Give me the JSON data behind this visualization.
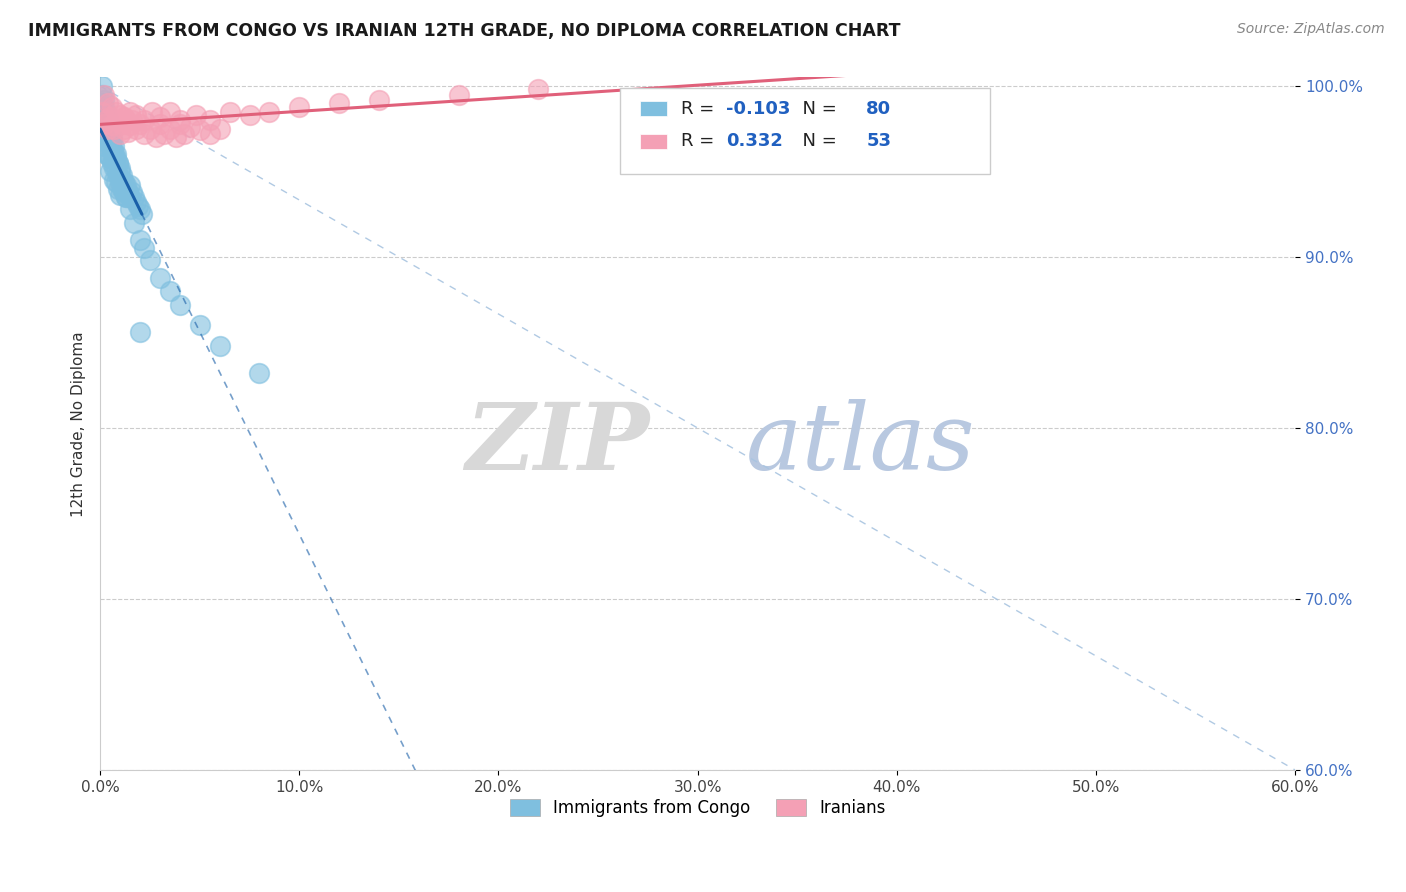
{
  "title": "IMMIGRANTS FROM CONGO VS IRANIAN 12TH GRADE, NO DIPLOMA CORRELATION CHART",
  "source": "Source: ZipAtlas.com",
  "xlabel_legend1": "Immigrants from Congo",
  "xlabel_legend2": "Iranians",
  "ylabel": "12th Grade, No Diploma",
  "r_congo": -0.103,
  "n_congo": 80,
  "r_iranian": 0.332,
  "n_iranian": 53,
  "xlim": [
    0.0,
    0.6
  ],
  "ylim": [
    0.6,
    1.005
  ],
  "xticks": [
    0.0,
    0.1,
    0.2,
    0.3,
    0.4,
    0.5,
    0.6
  ],
  "yticks": [
    0.6,
    0.7,
    0.8,
    0.9,
    1.0
  ],
  "xtick_labels": [
    "0.0%",
    "10.0%",
    "20.0%",
    "30.0%",
    "40.0%",
    "50.0%",
    "60.0%"
  ],
  "ytick_labels": [
    "60.0%",
    "70.0%",
    "80.0%",
    "90.0%",
    "100.0%"
  ],
  "color_congo": "#7fbfdf",
  "color_iranian": "#f4a0b5",
  "trendline_congo": "#1a5fa8",
  "trendline_iranian": "#e0607a",
  "background": "#ffffff",
  "congo_x": [
    0.001,
    0.001,
    0.001,
    0.001,
    0.002,
    0.002,
    0.002,
    0.002,
    0.003,
    0.003,
    0.003,
    0.003,
    0.004,
    0.004,
    0.004,
    0.005,
    0.005,
    0.005,
    0.005,
    0.006,
    0.006,
    0.006,
    0.007,
    0.007,
    0.007,
    0.007,
    0.008,
    0.008,
    0.008,
    0.009,
    0.009,
    0.009,
    0.01,
    0.01,
    0.01,
    0.011,
    0.011,
    0.012,
    0.012,
    0.013,
    0.013,
    0.014,
    0.015,
    0.015,
    0.016,
    0.017,
    0.018,
    0.019,
    0.02,
    0.021,
    0.001,
    0.001,
    0.002,
    0.002,
    0.003,
    0.003,
    0.004,
    0.004,
    0.005,
    0.006,
    0.006,
    0.007,
    0.008,
    0.009,
    0.01,
    0.011,
    0.012,
    0.013,
    0.015,
    0.017,
    0.02,
    0.022,
    0.025,
    0.03,
    0.035,
    0.04,
    0.05,
    0.06,
    0.08,
    0.02
  ],
  "congo_y": [
    0.99,
    0.985,
    0.98,
    0.975,
    0.985,
    0.975,
    0.97,
    0.965,
    0.98,
    0.975,
    0.97,
    0.96,
    0.975,
    0.968,
    0.96,
    0.972,
    0.965,
    0.958,
    0.95,
    0.968,
    0.962,
    0.955,
    0.965,
    0.958,
    0.952,
    0.945,
    0.96,
    0.952,
    0.944,
    0.955,
    0.948,
    0.94,
    0.95,
    0.944,
    0.936,
    0.948,
    0.94,
    0.944,
    0.938,
    0.942,
    0.935,
    0.938,
    0.942,
    0.935,
    0.938,
    0.935,
    0.932,
    0.93,
    0.928,
    0.925,
    1.0,
    0.995,
    0.992,
    0.988,
    0.984,
    0.978,
    0.98,
    0.974,
    0.968,
    0.97,
    0.964,
    0.96,
    0.958,
    0.955,
    0.952,
    0.945,
    0.94,
    0.935,
    0.928,
    0.92,
    0.91,
    0.905,
    0.898,
    0.888,
    0.88,
    0.872,
    0.86,
    0.848,
    0.832,
    0.856
  ],
  "iranian_x": [
    0.001,
    0.002,
    0.003,
    0.004,
    0.005,
    0.006,
    0.007,
    0.008,
    0.01,
    0.011,
    0.012,
    0.013,
    0.014,
    0.015,
    0.016,
    0.018,
    0.02,
    0.022,
    0.025,
    0.028,
    0.03,
    0.032,
    0.035,
    0.038,
    0.04,
    0.042,
    0.045,
    0.05,
    0.055,
    0.06,
    0.002,
    0.004,
    0.006,
    0.008,
    0.01,
    0.012,
    0.015,
    0.018,
    0.022,
    0.026,
    0.03,
    0.035,
    0.04,
    0.048,
    0.055,
    0.065,
    0.075,
    0.085,
    0.1,
    0.12,
    0.14,
    0.18,
    0.22
  ],
  "iranian_y": [
    0.985,
    0.978,
    0.98,
    0.975,
    0.982,
    0.977,
    0.975,
    0.98,
    0.972,
    0.978,
    0.975,
    0.98,
    0.973,
    0.977,
    0.98,
    0.975,
    0.978,
    0.972,
    0.975,
    0.97,
    0.978,
    0.972,
    0.975,
    0.97,
    0.978,
    0.972,
    0.976,
    0.974,
    0.972,
    0.975,
    0.995,
    0.99,
    0.988,
    0.985,
    0.983,
    0.982,
    0.985,
    0.983,
    0.98,
    0.985,
    0.982,
    0.985,
    0.98,
    0.983,
    0.98,
    0.985,
    0.983,
    0.985,
    0.988,
    0.99,
    0.992,
    0.995,
    0.998
  ]
}
